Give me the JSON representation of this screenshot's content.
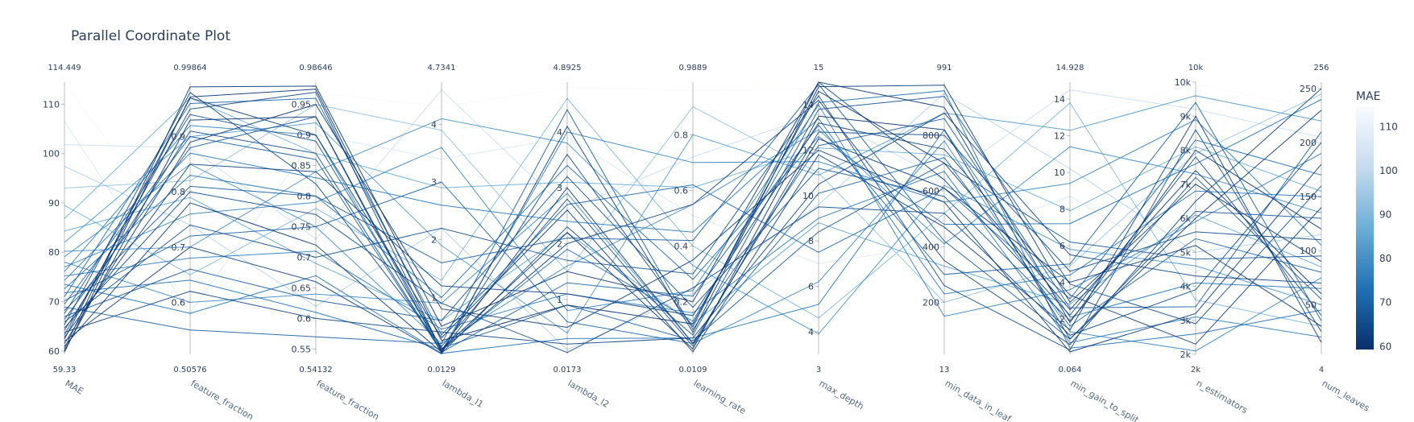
{
  "chart_data": {
    "type": "parallel_coordinates",
    "title": "Parallel Coordinate Plot",
    "color_by": "MAE",
    "colorscale": [
      "#08306b",
      "#2171b5",
      "#6baed6",
      "#c6dbef",
      "#f7fbff"
    ],
    "colorbar": {
      "title": "MAE",
      "range": [
        59.33,
        114.449
      ],
      "ticks": [
        "60",
        "70",
        "80",
        "90",
        "100",
        "110"
      ]
    },
    "dimensions": [
      {
        "name": "MAE",
        "label": "MAE",
        "range": [
          59.33,
          114.449
        ],
        "range_labels": [
          "59.33",
          "114.449"
        ],
        "ticks": [
          {
            "v": 60,
            "t": "60"
          },
          {
            "v": 70,
            "t": "70"
          },
          {
            "v": 80,
            "t": "80"
          },
          {
            "v": 90,
            "t": "90"
          },
          {
            "v": 100,
            "t": "100"
          },
          {
            "v": 110,
            "t": "110"
          }
        ]
      },
      {
        "name": "feature_fraction",
        "label": "feature_fraction",
        "range": [
          0.50576,
          0.99864
        ],
        "range_labels": [
          "0.50576",
          "0.99864"
        ],
        "ticks": [
          {
            "v": 0.6,
            "t": "0.6"
          },
          {
            "v": 0.7,
            "t": "0.7"
          },
          {
            "v": 0.8,
            "t": "0.8"
          },
          {
            "v": 0.9,
            "t": "0.9"
          }
        ]
      },
      {
        "name": "feature_fraction_bynode",
        "label": "feature_fraction_...",
        "range": [
          0.54132,
          0.98646
        ],
        "range_labels": [
          "0.54132",
          "0.98646"
        ],
        "ticks": [
          {
            "v": 0.55,
            "t": "0.55"
          },
          {
            "v": 0.6,
            "t": "0.6"
          },
          {
            "v": 0.65,
            "t": "0.65"
          },
          {
            "v": 0.7,
            "t": "0.7"
          },
          {
            "v": 0.75,
            "t": "0.75"
          },
          {
            "v": 0.8,
            "t": "0.8"
          },
          {
            "v": 0.85,
            "t": "0.85"
          },
          {
            "v": 0.9,
            "t": "0.9"
          },
          {
            "v": 0.95,
            "t": "0.95"
          }
        ]
      },
      {
        "name": "lambda_l1",
        "label": "lambda_l1",
        "range": [
          0.0129,
          4.7341
        ],
        "range_labels": [
          "0.0129",
          "4.7341"
        ],
        "ticks": [
          {
            "v": 1,
            "t": "1"
          },
          {
            "v": 2,
            "t": "2"
          },
          {
            "v": 3,
            "t": "3"
          },
          {
            "v": 4,
            "t": "4"
          }
        ]
      },
      {
        "name": "lambda_l2",
        "label": "lambda_l2",
        "range": [
          0.0173,
          4.8925
        ],
        "range_labels": [
          "0.0173",
          "4.8925"
        ],
        "ticks": [
          {
            "v": 1,
            "t": "1"
          },
          {
            "v": 2,
            "t": "2"
          },
          {
            "v": 3,
            "t": "3"
          },
          {
            "v": 4,
            "t": "4"
          }
        ]
      },
      {
        "name": "learning_rate",
        "label": "learning_rate",
        "range": [
          0.0109,
          0.9889
        ],
        "range_labels": [
          "0.0109",
          "0.9889"
        ],
        "ticks": [
          {
            "v": 0.2,
            "t": "0.2"
          },
          {
            "v": 0.4,
            "t": "0.4"
          },
          {
            "v": 0.6,
            "t": "0.6"
          },
          {
            "v": 0.8,
            "t": "0.8"
          }
        ]
      },
      {
        "name": "max_depth",
        "label": "max_depth",
        "range": [
          3,
          15
        ],
        "range_labels": [
          "3",
          "15"
        ],
        "ticks": [
          {
            "v": 4,
            "t": "4"
          },
          {
            "v": 6,
            "t": "6"
          },
          {
            "v": 8,
            "t": "8"
          },
          {
            "v": 10,
            "t": "10"
          },
          {
            "v": 12,
            "t": "12"
          },
          {
            "v": 14,
            "t": "14"
          }
        ]
      },
      {
        "name": "min_data_in_leaf",
        "label": "min_data_in_leaf",
        "range": [
          13,
          991
        ],
        "range_labels": [
          "13",
          "991"
        ],
        "ticks": [
          {
            "v": 200,
            "t": "200"
          },
          {
            "v": 400,
            "t": "400"
          },
          {
            "v": 600,
            "t": "600"
          },
          {
            "v": 800,
            "t": "800"
          }
        ]
      },
      {
        "name": "min_gain_to_split",
        "label": "min_gain_to_split",
        "range": [
          0.064,
          14.928
        ],
        "range_labels": [
          "0.064",
          "14.928"
        ],
        "ticks": [
          {
            "v": 2,
            "t": "2"
          },
          {
            "v": 4,
            "t": "4"
          },
          {
            "v": 6,
            "t": "6"
          },
          {
            "v": 8,
            "t": "8"
          },
          {
            "v": 10,
            "t": "10"
          },
          {
            "v": 12,
            "t": "12"
          },
          {
            "v": 14,
            "t": "14"
          }
        ]
      },
      {
        "name": "n_estimators",
        "label": "n_estimators",
        "range": [
          2000,
          10000
        ],
        "range_labels": [
          "2k",
          "10k"
        ],
        "ticks": [
          {
            "v": 2000,
            "t": "2k"
          },
          {
            "v": 3000,
            "t": "3k"
          },
          {
            "v": 4000,
            "t": "4k"
          },
          {
            "v": 5000,
            "t": "5k"
          },
          {
            "v": 6000,
            "t": "6k"
          },
          {
            "v": 7000,
            "t": "7k"
          },
          {
            "v": 8000,
            "t": "8k"
          },
          {
            "v": 9000,
            "t": "9k"
          },
          {
            "v": 10000,
            "t": "10k"
          }
        ]
      },
      {
        "name": "num_leaves",
        "label": "num_leaves",
        "range": [
          4,
          256
        ],
        "range_labels": [
          "4",
          "256"
        ],
        "ticks": [
          {
            "v": 50,
            "t": "50"
          },
          {
            "v": 100,
            "t": "100"
          },
          {
            "v": 150,
            "t": "150"
          },
          {
            "v": 200,
            "t": "200"
          },
          {
            "v": 250,
            "t": "250"
          }
        ]
      }
    ],
    "records": [
      [
        59.8,
        0.972,
        0.975,
        0.25,
        0.9,
        0.12,
        14.6,
        700,
        2.5,
        7400,
        60
      ],
      [
        60.1,
        0.93,
        0.93,
        0.1,
        2.2,
        0.03,
        13.5,
        820,
        0.9,
        6000,
        230
      ],
      [
        60.5,
        0.99,
        0.98,
        0.5,
        1.5,
        0.2,
        15,
        900,
        1.8,
        8000,
        120
      ],
      [
        61.0,
        0.78,
        0.72,
        0.05,
        3.0,
        0.05,
        12.5,
        610,
        4.0,
        5200,
        30
      ],
      [
        61.5,
        0.89,
        0.95,
        0.8,
        0.5,
        0.35,
        12,
        560,
        0.2,
        3200,
        180
      ],
      [
        62.0,
        0.7,
        0.66,
        0.02,
        4.1,
        0.09,
        14.8,
        980,
        2.9,
        7000,
        90
      ],
      [
        62.4,
        0.97,
        0.9,
        0.3,
        2.6,
        0.02,
        11.8,
        470,
        1.4,
        9000,
        15
      ],
      [
        62.8,
        0.85,
        0.84,
        1.2,
        1.1,
        0.15,
        13.2,
        750,
        3.3,
        2300,
        140
      ],
      [
        63.3,
        0.95,
        0.97,
        0.08,
        2.0,
        0.55,
        14.2,
        350,
        0.6,
        6500,
        250
      ],
      [
        63.8,
        0.62,
        0.6,
        0.4,
        0.2,
        0.07,
        10.5,
        880,
        5.5,
        4300,
        70
      ],
      [
        64.2,
        0.91,
        0.87,
        0.06,
        3.6,
        0.11,
        15,
        640,
        2.2,
        7800,
        40
      ],
      [
        64.7,
        0.8,
        0.77,
        0.9,
        0.05,
        0.25,
        9.5,
        520,
        1.1,
        3900,
        200
      ],
      [
        65.3,
        0.98,
        0.82,
        0.15,
        2.8,
        0.04,
        12.8,
        800,
        4.6,
        5600,
        110
      ],
      [
        65.9,
        0.74,
        0.7,
        2.2,
        1.7,
        0.3,
        14.4,
        260,
        0.3,
        8600,
        25
      ],
      [
        66.4,
        0.88,
        0.93,
        0.03,
        2.3,
        0.08,
        13.8,
        940,
        3.9,
        2900,
        160
      ],
      [
        67.0,
        0.66,
        0.63,
        0.6,
        3.2,
        0.18,
        11.2,
        580,
        1.9,
        7200,
        55
      ],
      [
        67.6,
        0.94,
        0.89,
        0.12,
        0.9,
        0.06,
        8.4,
        700,
        6.2,
        4800,
        95
      ],
      [
        68.2,
        0.81,
        0.8,
        1.6,
        2.1,
        0.42,
        14.9,
        420,
        0.9,
        6200,
        130
      ],
      [
        68.9,
        0.55,
        0.57,
        0.2,
        4.4,
        0.1,
        12.2,
        860,
        2.6,
        3400,
        210
      ],
      [
        69.5,
        0.9,
        0.86,
        0.05,
        1.3,
        0.22,
        13.1,
        300,
        5.0,
        9400,
        35
      ],
      [
        70.2,
        0.72,
        0.75,
        3.0,
        0.6,
        0.05,
        10.1,
        720,
        1.6,
        5400,
        80
      ],
      [
        71.0,
        0.96,
        0.96,
        0.35,
        2.7,
        0.62,
        7.5,
        610,
        3.1,
        8300,
        170
      ],
      [
        71.8,
        0.64,
        0.61,
        0.1,
        1.9,
        0.13,
        14.1,
        960,
        0.4,
        2600,
        45
      ],
      [
        72.6,
        0.83,
        0.8,
        1.0,
        3.4,
        0.28,
        12.6,
        480,
        7.2,
        7600,
        240
      ],
      [
        73.5,
        0.58,
        0.67,
        0.03,
        0.3,
        0.07,
        5.2,
        820,
        2.1,
        4100,
        65
      ],
      [
        74.3,
        0.87,
        0.83,
        2.6,
        2.4,
        0.45,
        13.4,
        230,
        4.4,
        6800,
        150
      ],
      [
        75.2,
        0.68,
        0.71,
        0.45,
        1.1,
        0.16,
        9.0,
        670,
        0.7,
        3100,
        20
      ],
      [
        76.1,
        0.92,
        0.9,
        0.07,
        4.0,
        0.7,
        11.5,
        560,
        9.4,
        8900,
        105
      ],
      [
        77.0,
        0.76,
        0.79,
        3.6,
        0.8,
        0.24,
        14.0,
        150,
        3.6,
        5900,
        190
      ],
      [
        78.0,
        0.6,
        0.64,
        0.9,
        2.9,
        0.05,
        6.2,
        780,
        1.3,
        2100,
        75
      ],
      [
        79.1,
        0.85,
        0.75,
        0.2,
        1.6,
        0.55,
        12.9,
        410,
        11.4,
        7300,
        135
      ],
      [
        80.2,
        0.7,
        0.84,
        4.1,
        3.8,
        0.33,
        3.9,
        620,
        5.8,
        4600,
        50
      ],
      [
        82.0,
        0.9,
        0.92,
        1.9,
        0.4,
        0.8,
        10.9,
        880,
        12.3,
        9600,
        220
      ],
      [
        84.3,
        0.79,
        0.69,
        0.6,
        2.2,
        0.12,
        8.8,
        330,
        2.8,
        6100,
        85
      ],
      [
        86.8,
        0.97,
        0.87,
        2.9,
        3.1,
        0.61,
        12.1,
        730,
        7.9,
        8100,
        155
      ],
      [
        89.5,
        0.65,
        0.78,
        1.3,
        4.6,
        0.4,
        4.6,
        520,
        13.8,
        3600,
        30
      ],
      [
        93.0,
        0.82,
        0.95,
        3.9,
        1.5,
        0.9,
        11.0,
        200,
        4.9,
        7900,
        245
      ],
      [
        97.4,
        0.74,
        0.62,
        2.2,
        0.1,
        0.23,
        9.6,
        950,
        10.2,
        5000,
        115
      ],
      [
        101.8,
        0.88,
        0.73,
        4.6,
        2.6,
        0.72,
        13.6,
        640,
        14.5,
        9200,
        205
      ],
      [
        106.5,
        0.58,
        0.9,
        3.4,
        3.9,
        0.51,
        7.0,
        410,
        8.7,
        4400,
        165
      ],
      [
        114.2,
        0.69,
        0.97,
        4.3,
        4.8,
        0.96,
        14.7,
        880,
        12.9,
        9950,
        230
      ]
    ]
  }
}
